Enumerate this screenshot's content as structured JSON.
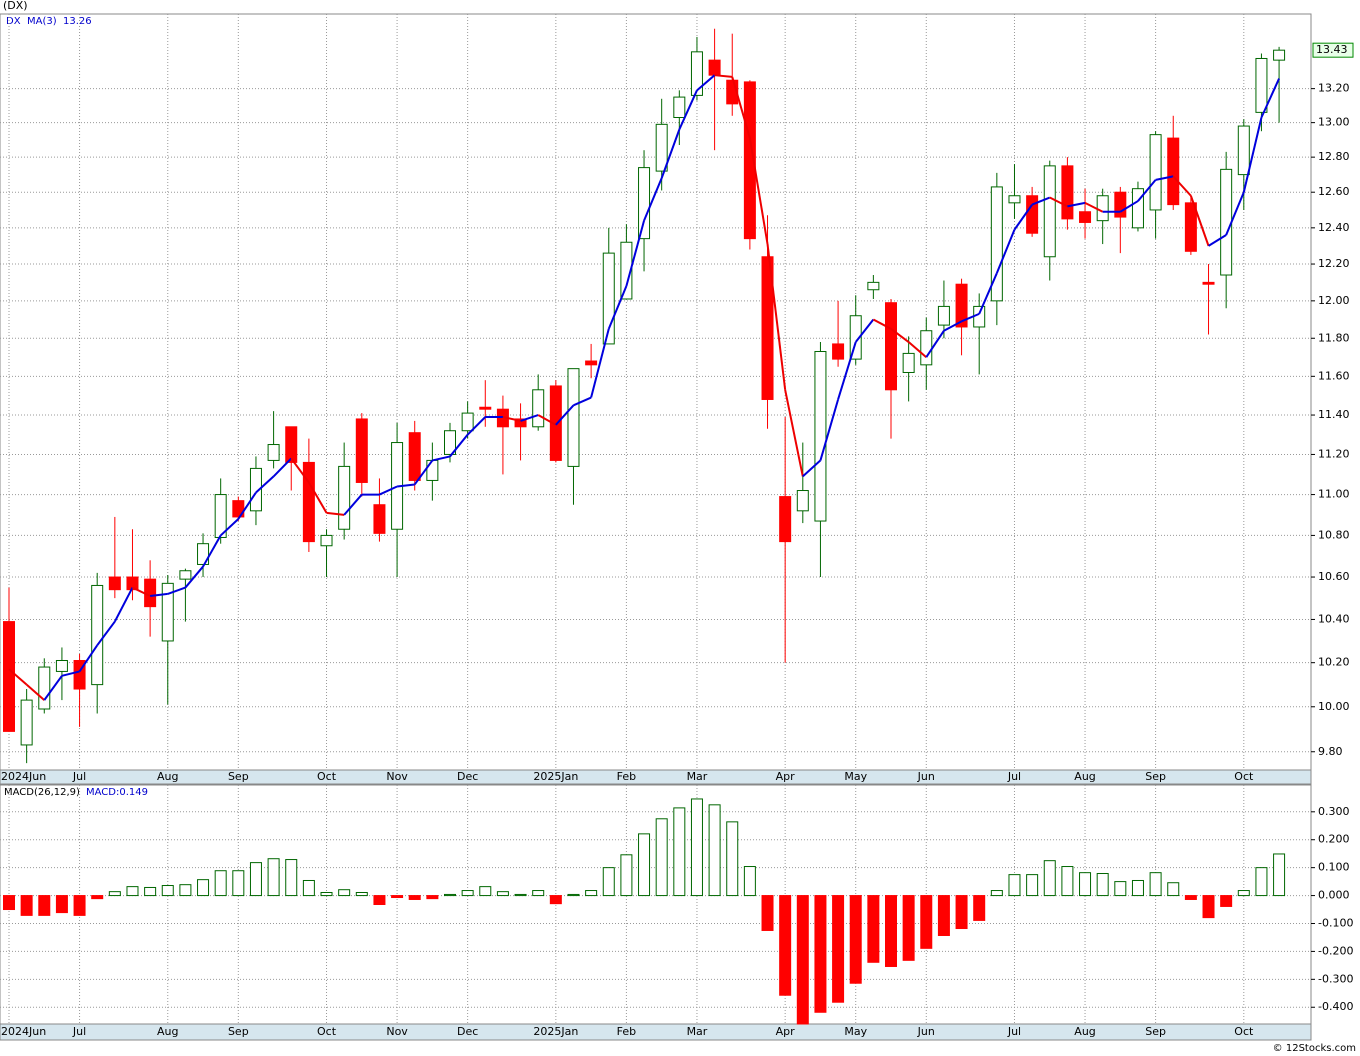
{
  "chart_data": [
    {
      "type": "candlestick",
      "title": "(DX)",
      "symbol": "DX",
      "categories": [
        "2024Jun",
        null,
        null,
        null,
        "Jul",
        null,
        null,
        null,
        null,
        "Aug",
        null,
        null,
        null,
        "Sep",
        null,
        null,
        null,
        null,
        "Oct",
        null,
        null,
        null,
        "Nov",
        null,
        null,
        null,
        "Dec",
        null,
        null,
        null,
        null,
        "2025Jan",
        null,
        null,
        null,
        "Feb",
        null,
        null,
        null,
        "Mar",
        null,
        null,
        null,
        null,
        "Apr",
        null,
        null,
        null,
        "May",
        null,
        null,
        null,
        "Jun",
        null,
        null,
        null,
        null,
        "Jul",
        null,
        null,
        null,
        "Aug",
        null,
        null,
        null,
        "Sep",
        null,
        null,
        null,
        null,
        "Oct",
        null,
        null
      ],
      "open": [
        10.39,
        9.83,
        9.99,
        10.16,
        10.21,
        10.1,
        10.6,
        10.6,
        10.59,
        10.3,
        10.59,
        10.66,
        10.79,
        10.97,
        10.92,
        11.17,
        11.34,
        11.16,
        10.75,
        10.83,
        11.38,
        10.95,
        10.83,
        11.31,
        11.07,
        11.2,
        11.32,
        11.44,
        11.43,
        11.38,
        11.34,
        11.55,
        11.14,
        11.68,
        11.77,
        12.01,
        12.34,
        12.72,
        13.03,
        13.16,
        13.37,
        13.25,
        13.24,
        12.24,
        10.99,
        10.92,
        10.87,
        11.77,
        11.69,
        12.06,
        11.99,
        11.62,
        11.66,
        11.87,
        12.09,
        11.86,
        12.0,
        12.54,
        12.58,
        12.24,
        12.75,
        12.49,
        12.44,
        12.6,
        12.4,
        12.5,
        12.91,
        12.54,
        12.1,
        12.14,
        12.7,
        13.06,
        13.37
      ],
      "high": [
        10.55,
        10.08,
        10.22,
        10.27,
        10.24,
        10.62,
        10.89,
        10.83,
        10.68,
        10.61,
        10.64,
        10.81,
        11.08,
        10.99,
        11.19,
        11.42,
        11.34,
        11.28,
        10.83,
        11.26,
        11.41,
        11.08,
        11.36,
        11.37,
        11.26,
        11.36,
        11.47,
        11.58,
        11.5,
        11.46,
        11.61,
        11.58,
        11.64,
        11.77,
        12.4,
        12.42,
        12.84,
        13.14,
        13.19,
        13.51,
        13.56,
        13.53,
        13.25,
        12.47,
        11.39,
        11.26,
        11.78,
        12.0,
        12.03,
        12.14,
        12.01,
        11.81,
        11.91,
        12.11,
        12.12,
        12.04,
        12.71,
        12.76,
        12.63,
        12.78,
        12.8,
        12.62,
        12.62,
        12.63,
        12.66,
        12.95,
        13.04,
        12.57,
        12.2,
        12.83,
        13.02,
        13.41,
        13.45
      ],
      "low": [
        9.89,
        9.75,
        9.97,
        10.03,
        9.91,
        9.97,
        10.5,
        10.49,
        10.32,
        10.01,
        10.39,
        10.6,
        10.76,
        10.87,
        10.85,
        11.13,
        11.02,
        10.72,
        10.6,
        10.78,
        10.99,
        10.77,
        10.6,
        11.02,
        10.97,
        11.16,
        11.28,
        11.34,
        11.1,
        11.17,
        11.32,
        11.16,
        10.95,
        11.59,
        11.77,
        12.01,
        12.16,
        12.61,
        12.87,
        13.13,
        12.84,
        13.04,
        12.28,
        11.33,
        10.2,
        10.86,
        10.6,
        11.65,
        11.66,
        12.01,
        11.28,
        11.47,
        11.53,
        11.8,
        11.71,
        11.61,
        11.87,
        12.45,
        12.35,
        12.11,
        12.39,
        12.34,
        12.31,
        12.26,
        12.38,
        12.34,
        12.5,
        12.25,
        11.82,
        11.96,
        12.5,
        12.95,
        13.0
      ],
      "close": [
        9.89,
        10.03,
        10.18,
        10.21,
        10.08,
        10.56,
        10.54,
        10.54,
        10.46,
        10.57,
        10.63,
        10.76,
        11.0,
        10.89,
        11.13,
        11.25,
        11.16,
        10.77,
        10.8,
        11.14,
        11.06,
        10.81,
        11.26,
        11.07,
        11.17,
        11.32,
        11.41,
        11.43,
        11.34,
        11.34,
        11.53,
        11.17,
        11.64,
        11.66,
        12.26,
        12.32,
        12.74,
        12.99,
        13.15,
        13.42,
        13.28,
        13.11,
        12.34,
        11.48,
        10.77,
        11.02,
        11.73,
        11.69,
        11.92,
        12.1,
        11.53,
        11.72,
        11.84,
        11.97,
        11.86,
        11.97,
        12.63,
        12.58,
        12.37,
        12.75,
        12.45,
        12.43,
        12.58,
        12.46,
        12.62,
        12.93,
        12.53,
        12.27,
        12.09,
        12.73,
        12.98,
        13.38,
        13.43
      ],
      "ma": {
        "name": "MA(3)",
        "up_color": "#0000dd",
        "down_color": "#ee0000",
        "values": [
          10.17,
          10.1,
          10.03,
          10.14,
          10.16,
          10.28,
          10.39,
          10.55,
          10.51,
          10.52,
          10.55,
          10.65,
          10.8,
          10.88,
          11.01,
          11.09,
          11.18,
          11.06,
          10.91,
          10.9,
          11.0,
          11.0,
          11.04,
          11.05,
          11.17,
          11.19,
          11.3,
          11.39,
          11.39,
          11.37,
          11.4,
          11.35,
          11.45,
          11.49,
          11.85,
          12.08,
          12.44,
          12.68,
          12.96,
          13.19,
          13.28,
          13.27,
          12.91,
          12.31,
          11.53,
          11.09,
          11.17,
          11.48,
          11.78,
          11.9,
          11.85,
          11.78,
          11.7,
          11.84,
          11.89,
          11.93,
          12.15,
          12.39,
          12.53,
          12.57,
          12.52,
          12.54,
          12.49,
          12.49,
          12.55,
          12.67,
          12.69,
          12.58,
          12.3,
          12.36,
          12.6,
          13.03,
          13.26
        ]
      },
      "up_color": "#006600",
      "down_color": "#ff0000",
      "yscale": "log",
      "ylim": [
        9.72,
        13.65
      ],
      "grid": true,
      "yticks": [
        {
          "value": 9.8,
          "label": "9.80"
        },
        {
          "value": 10.0,
          "label": "10.00"
        },
        {
          "value": 10.2,
          "label": "10.20"
        },
        {
          "value": 10.4,
          "label": "10.40"
        },
        {
          "value": 10.6,
          "label": "10.60"
        },
        {
          "value": 10.8,
          "label": "10.80"
        },
        {
          "value": 11.0,
          "label": "11.00"
        },
        {
          "value": 11.2,
          "label": "11.20"
        },
        {
          "value": 11.4,
          "label": "11.40"
        },
        {
          "value": 11.6,
          "label": "11.60"
        },
        {
          "value": 11.8,
          "label": "11.80"
        },
        {
          "value": 12.0,
          "label": "12.00"
        },
        {
          "value": 12.2,
          "label": "12.20"
        },
        {
          "value": 12.4,
          "label": "12.40"
        },
        {
          "value": 12.6,
          "label": "12.60"
        },
        {
          "value": 12.8,
          "label": "12.80"
        },
        {
          "value": 13.0,
          "label": "13.00"
        },
        {
          "value": 13.2,
          "label": "13.20"
        }
      ]
    },
    {
      "type": "bar",
      "title": "MACD(26,12,9)",
      "label": "MACD:0.149",
      "categories": [
        "2024Jun",
        null,
        null,
        null,
        "Jul",
        null,
        null,
        null,
        null,
        "Aug",
        null,
        null,
        null,
        "Sep",
        null,
        null,
        null,
        null,
        "Oct",
        null,
        null,
        null,
        "Nov",
        null,
        null,
        null,
        "Dec",
        null,
        null,
        null,
        null,
        "2025Jan",
        null,
        null,
        null,
        "Feb",
        null,
        null,
        null,
        "Mar",
        null,
        null,
        null,
        null,
        "Apr",
        null,
        null,
        null,
        "May",
        null,
        null,
        null,
        "Jun",
        null,
        null,
        null,
        null,
        "Jul",
        null,
        null,
        null,
        "Aug",
        null,
        null,
        null,
        "Sep",
        null,
        null,
        null,
        null,
        "Oct",
        null,
        null
      ],
      "values": [
        -0.05,
        -0.071,
        -0.071,
        -0.061,
        -0.071,
        -0.011,
        0.014,
        0.032,
        0.029,
        0.036,
        0.039,
        0.057,
        0.089,
        0.089,
        0.118,
        0.132,
        0.129,
        0.054,
        0.011,
        0.021,
        0.011,
        -0.032,
        -0.007,
        -0.014,
        -0.011,
        0.004,
        0.018,
        0.032,
        0.014,
        0.004,
        0.018,
        -0.029,
        0.004,
        0.018,
        0.1,
        0.146,
        0.221,
        0.275,
        0.314,
        0.346,
        0.325,
        0.264,
        0.104,
        -0.125,
        -0.357,
        -0.46,
        -0.418,
        -0.382,
        -0.314,
        -0.239,
        -0.254,
        -0.232,
        -0.189,
        -0.143,
        -0.118,
        -0.089,
        0.018,
        0.075,
        0.075,
        0.125,
        0.104,
        0.082,
        0.079,
        0.05,
        0.054,
        0.082,
        0.046,
        -0.014,
        -0.079,
        -0.039,
        0.018,
        0.1,
        0.149
      ],
      "up_color": "#006600",
      "down_color": "#ff0000",
      "ylim": [
        -0.46,
        0.396
      ],
      "grid": true,
      "yticks": [
        {
          "value": 0.3,
          "label": "0.300"
        },
        {
          "value": 0.2,
          "label": "0.200"
        },
        {
          "value": 0.1,
          "label": "0.100"
        },
        {
          "value": 0,
          "label": "0.000"
        },
        {
          "value": -0.1,
          "label": "-0.100"
        },
        {
          "value": -0.2,
          "label": "-0.200"
        },
        {
          "value": -0.3,
          "label": "-0.300"
        },
        {
          "value": -0.4,
          "label": "-0.400"
        }
      ]
    }
  ],
  "footer": "© 12Stocks.com"
}
